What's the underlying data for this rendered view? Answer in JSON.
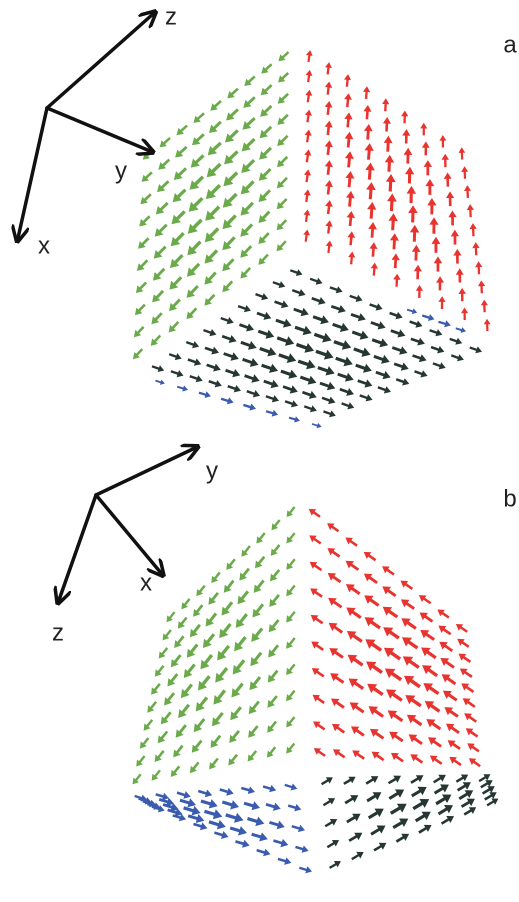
{
  "panels": [
    {
      "label": "a",
      "axes": [
        "z",
        "y",
        "x"
      ]
    },
    {
      "label": "b",
      "axes": [
        "y",
        "x",
        "z"
      ]
    }
  ]
}
